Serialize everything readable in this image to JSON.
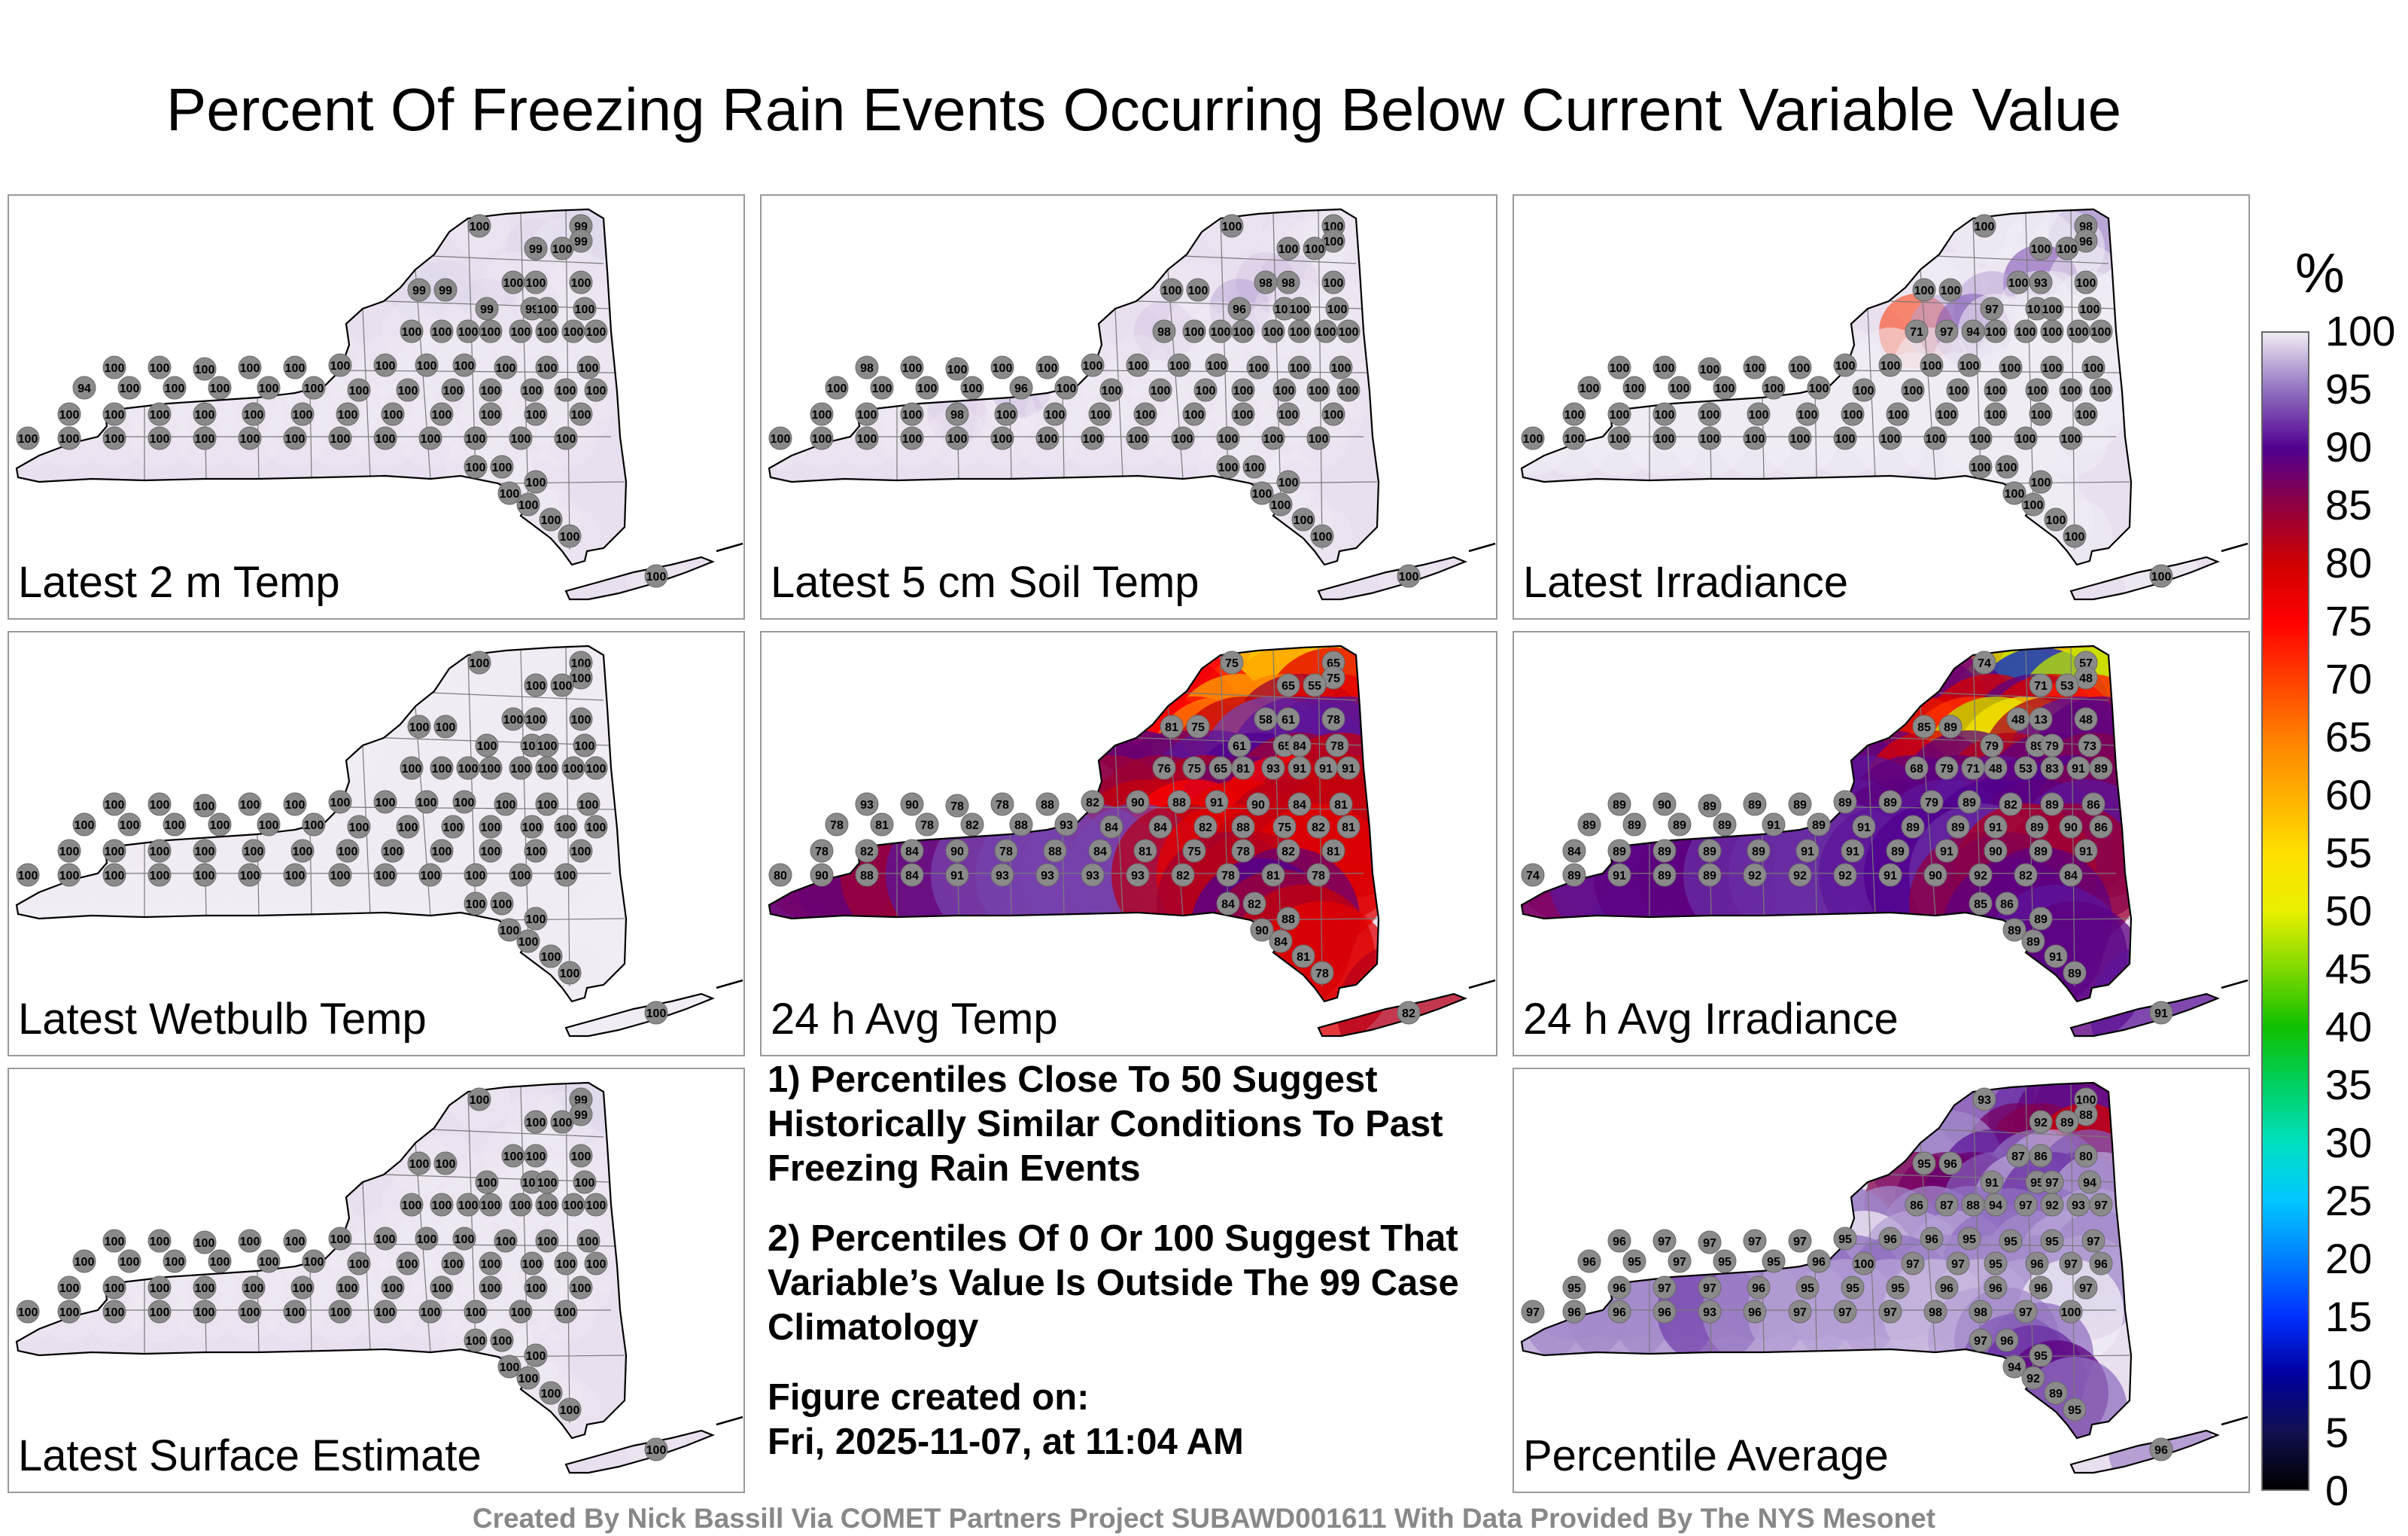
{
  "title": "Percent Of Freezing Rain Events Occurring Below Current Variable Value",
  "panels": [
    {
      "id": "temp2m",
      "label": "Latest 2 m Temp",
      "scheme": "uniform",
      "values": [
        100,
        99,
        99,
        99,
        100,
        100,
        100,
        100,
        99,
        99,
        99,
        99,
        100,
        100,
        100,
        100,
        100,
        100,
        100,
        100,
        100,
        100,
        100,
        100,
        100,
        100,
        100,
        100,
        100,
        100,
        100,
        100,
        100,
        100,
        94,
        100,
        100,
        100,
        100,
        100,
        100,
        100,
        100,
        100,
        100,
        100,
        100,
        100,
        100,
        100,
        100,
        100,
        100,
        100,
        100,
        100,
        100,
        100,
        100,
        100,
        100,
        100,
        100,
        100,
        100,
        100,
        100,
        100,
        100,
        100,
        100,
        100,
        100,
        100,
        100,
        100,
        100,
        100,
        100,
        100
      ]
    },
    {
      "id": "soil5cm",
      "label": "Latest 5 cm Soil Temp",
      "scheme": "uniform",
      "values": [
        100,
        100,
        100,
        100,
        100,
        98,
        98,
        100,
        100,
        100,
        96,
        100,
        100,
        100,
        98,
        100,
        100,
        100,
        100,
        100,
        100,
        100,
        98,
        100,
        100,
        100,
        100,
        100,
        100,
        100,
        100,
        100,
        100,
        100,
        100,
        100,
        100,
        100,
        96,
        100,
        100,
        100,
        100,
        100,
        100,
        100,
        100,
        100,
        100,
        100,
        98,
        100,
        100,
        100,
        100,
        100,
        100,
        100,
        100,
        100,
        100,
        100,
        100,
        100,
        100,
        100,
        100,
        100,
        100,
        100,
        100,
        100,
        100,
        100,
        100,
        100,
        100,
        100,
        100,
        100
      ]
    },
    {
      "id": "irradiance",
      "label": "Latest Irradiance",
      "scheme": "irradiance",
      "values": [
        100,
        98,
        96,
        100,
        100,
        100,
        93,
        100,
        100,
        100,
        97,
        100,
        100,
        100,
        71,
        97,
        94,
        100,
        100,
        100,
        100,
        100,
        100,
        100,
        100,
        100,
        100,
        100,
        100,
        100,
        100,
        100,
        100,
        100,
        100,
        100,
        100,
        100,
        100,
        100,
        100,
        100,
        100,
        100,
        100,
        100,
        100,
        100,
        100,
        100,
        100,
        100,
        100,
        100,
        100,
        100,
        100,
        100,
        100,
        100,
        100,
        100,
        100,
        100,
        100,
        100,
        100,
        100,
        100,
        100,
        100,
        100,
        100,
        100,
        100,
        100,
        100,
        100,
        100,
        100
      ]
    },
    {
      "id": "wetbulb",
      "label": "Latest Wetbulb Temp",
      "scheme": "uniform-light",
      "values": [
        100,
        100,
        100,
        100,
        100,
        100,
        100,
        100,
        100,
        100,
        100,
        100,
        100,
        100,
        100,
        100,
        100,
        100,
        100,
        100,
        100,
        100,
        100,
        100,
        100,
        100,
        100,
        100,
        100,
        100,
        100,
        100,
        100,
        100,
        100,
        100,
        100,
        100,
        100,
        100,
        100,
        100,
        100,
        100,
        100,
        100,
        100,
        100,
        100,
        100,
        100,
        100,
        100,
        100,
        100,
        100,
        100,
        100,
        100,
        100,
        100,
        100,
        100,
        100,
        100,
        100,
        100,
        100,
        100,
        100,
        100,
        100,
        100,
        100,
        100,
        100,
        100,
        100,
        100,
        100
      ]
    },
    {
      "id": "avgtemp24",
      "label": "24 h Avg Temp",
      "scheme": "avgtemp",
      "values": [
        75,
        65,
        75,
        65,
        55,
        58,
        61,
        78,
        81,
        75,
        61,
        65,
        84,
        78,
        76,
        75,
        65,
        81,
        93,
        91,
        91,
        91,
        93,
        90,
        78,
        78,
        88,
        82,
        90,
        88,
        91,
        90,
        84,
        81,
        78,
        81,
        78,
        82,
        88,
        93,
        84,
        84,
        82,
        88,
        75,
        82,
        81,
        78,
        82,
        84,
        90,
        78,
        88,
        84,
        81,
        75,
        78,
        82,
        81,
        80,
        90,
        88,
        84,
        91,
        93,
        93,
        93,
        93,
        82,
        78,
        81,
        78,
        84,
        82,
        88,
        90,
        84,
        81,
        78,
        82
      ]
    },
    {
      "id": "avgirr24",
      "label": "24 h Avg Irradiance",
      "scheme": "avgirr",
      "values": [
        74,
        57,
        48,
        71,
        53,
        48,
        13,
        48,
        85,
        89,
        79,
        89,
        79,
        73,
        68,
        79,
        71,
        48,
        53,
        83,
        91,
        89,
        89,
        90,
        89,
        89,
        89,
        89,
        89,
        79,
        89,
        82,
        89,
        86,
        89,
        89,
        89,
        89,
        91,
        89,
        91,
        89,
        89,
        91,
        89,
        90,
        86,
        84,
        89,
        89,
        89,
        89,
        91,
        91,
        89,
        91,
        90,
        89,
        91,
        74,
        89,
        91,
        89,
        89,
        92,
        92,
        92,
        91,
        90,
        92,
        82,
        84,
        85,
        86,
        89,
        89,
        89,
        91,
        89,
        91
      ]
    },
    {
      "id": "surface",
      "label": "Latest Surface Estimate",
      "scheme": "uniform",
      "values": [
        100,
        99,
        99,
        100,
        100,
        100,
        100,
        100,
        100,
        100,
        100,
        100,
        100,
        100,
        100,
        100,
        100,
        100,
        100,
        100,
        100,
        100,
        100,
        100,
        100,
        100,
        100,
        100,
        100,
        100,
        100,
        100,
        100,
        100,
        100,
        100,
        100,
        100,
        100,
        100,
        100,
        100,
        100,
        100,
        100,
        100,
        100,
        100,
        100,
        100,
        100,
        100,
        100,
        100,
        100,
        100,
        100,
        100,
        100,
        100,
        100,
        100,
        100,
        100,
        100,
        100,
        100,
        100,
        100,
        100,
        100,
        100,
        100,
        100,
        100,
        100,
        100,
        100,
        100,
        100
      ]
    },
    {
      "id": "average",
      "label": "Percentile Average",
      "scheme": "average",
      "values": [
        93,
        100,
        88,
        92,
        89,
        87,
        86,
        80,
        95,
        96,
        91,
        95,
        97,
        94,
        86,
        87,
        88,
        94,
        97,
        92,
        93,
        97,
        96,
        97,
        97,
        97,
        97,
        95,
        96,
        96,
        95,
        95,
        95,
        97,
        96,
        95,
        97,
        95,
        95,
        96,
        100,
        97,
        97,
        95,
        96,
        97,
        96,
        95,
        96,
        97,
        97,
        96,
        95,
        95,
        95,
        96,
        96,
        96,
        97,
        97,
        96,
        96,
        96,
        93,
        96,
        97,
        97,
        97,
        98,
        98,
        97,
        100,
        97,
        96,
        95,
        94,
        92,
        89,
        95,
        96
      ]
    }
  ],
  "notes": {
    "line1": "1) Percentiles Close To 50 Suggest Historically Similar Conditions To Past Freezing Rain Events",
    "line2": "2) Percentiles Of 0 Or 100 Suggest That Variable’s Value Is Outside The 99 Case Climatology",
    "created_label": "Figure created on:",
    "created_date": "Fri, 2025-11-07, at 11:04 AM"
  },
  "colorbar": {
    "unit": "%",
    "min": 0,
    "max": 100,
    "ticks": [
      "100",
      "95",
      "90",
      "85",
      "80",
      "75",
      "70",
      "65",
      "60",
      "55",
      "50",
      "45",
      "40",
      "35",
      "30",
      "25",
      "20",
      "15",
      "10",
      "5",
      "0"
    ],
    "stops": [
      {
        "v": 0,
        "c": "#000000"
      },
      {
        "v": 5,
        "c": "#101050"
      },
      {
        "v": 10,
        "c": "#0000a0"
      },
      {
        "v": 15,
        "c": "#0030ff"
      },
      {
        "v": 20,
        "c": "#0080ff"
      },
      {
        "v": 25,
        "c": "#00c8ff"
      },
      {
        "v": 30,
        "c": "#00e0c0"
      },
      {
        "v": 35,
        "c": "#00d060"
      },
      {
        "v": 40,
        "c": "#10c000"
      },
      {
        "v": 45,
        "c": "#80d800"
      },
      {
        "v": 50,
        "c": "#e8f000"
      },
      {
        "v": 55,
        "c": "#ffe000"
      },
      {
        "v": 60,
        "c": "#ffb000"
      },
      {
        "v": 65,
        "c": "#ff8000"
      },
      {
        "v": 70,
        "c": "#ff4000"
      },
      {
        "v": 75,
        "c": "#ff0000"
      },
      {
        "v": 80,
        "c": "#d00000"
      },
      {
        "v": 85,
        "c": "#900040"
      },
      {
        "v": 90,
        "c": "#500090"
      },
      {
        "v": 95,
        "c": "#9070c0"
      },
      {
        "v": 100,
        "c": "#f0ecf4"
      }
    ]
  },
  "credit": "Created By Nick Bassill Via COMET Partners Project SUBAWD001611 With Data Provided By The NYS Mesonet"
}
